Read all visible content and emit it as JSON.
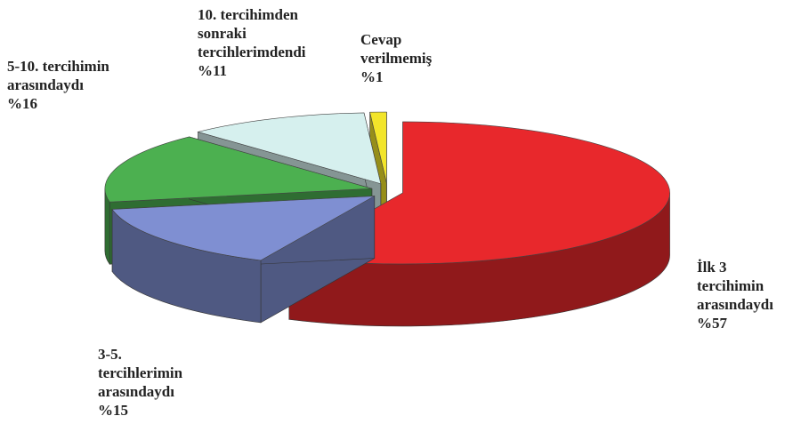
{
  "chart_data": {
    "type": "pie3d",
    "categories": [
      "İlk 3\ntercihimin\narasındaydı",
      "3-5.\ntercihlerimin\narasındaydı",
      "5-10. tercihimin\narasındaydı",
      "10. tercihimden\nsonraki\ntercihlerimdendi",
      "Cevap\nverilmemiş"
    ],
    "values": [
      57,
      15,
      16,
      11,
      1
    ],
    "value_labels": [
      "%57",
      "%15",
      "%16",
      "%11",
      "%1"
    ],
    "colors": [
      "#e8282c",
      "#7f8fd2",
      "#4cb050",
      "#d6f0ee",
      "#f2e52a"
    ]
  }
}
